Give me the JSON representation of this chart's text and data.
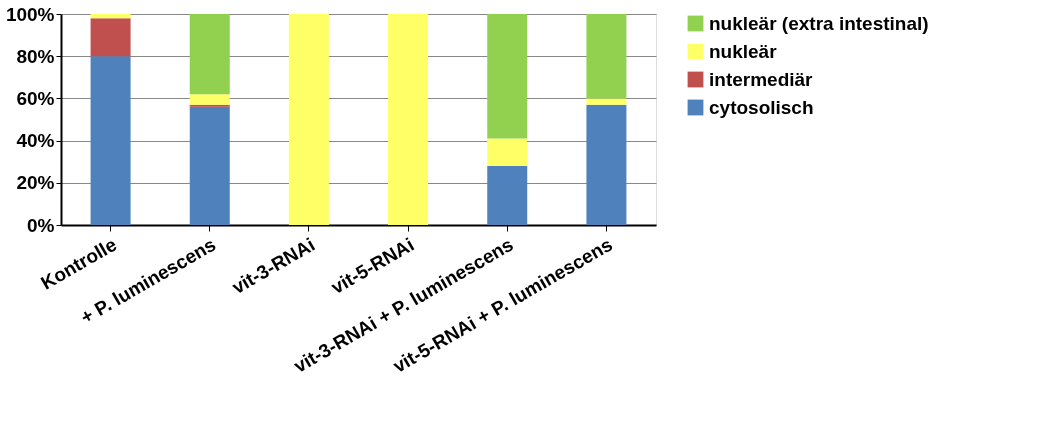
{
  "chart_data": {
    "type": "bar",
    "stacked": true,
    "categories": [
      "Kontrolle",
      "+ P. luminescens",
      "vit-3-RNAi",
      "vit-5-RNAi",
      "vit-3-RNAi + P. luminescens",
      "vit-5-RNAi + P. luminescens"
    ],
    "series": [
      {
        "name": "cytosolisch",
        "color": "#4f81bd",
        "values": [
          80,
          56,
          0,
          0,
          28,
          57
        ]
      },
      {
        "name": "intermediär",
        "color": "#c0504d",
        "values": [
          18,
          1,
          0,
          0,
          0,
          0
        ]
      },
      {
        "name": "nukleär",
        "color": "#ffff66",
        "values": [
          2,
          5,
          100,
          100,
          13,
          3
        ]
      },
      {
        "name": "nukleär (extra intestinal)",
        "color": "#92d050",
        "values": [
          0,
          38,
          0,
          0,
          59,
          40
        ]
      }
    ],
    "ylim": [
      0,
      100
    ],
    "yticks": [
      {
        "value": 0,
        "label": "0%"
      },
      {
        "value": 20,
        "label": "20%"
      },
      {
        "value": 40,
        "label": "40%"
      },
      {
        "value": 60,
        "label": "60%"
      },
      {
        "value": 80,
        "label": "80%"
      },
      {
        "value": 100,
        "label": "100%"
      }
    ],
    "grid": "y",
    "legend": "right"
  }
}
